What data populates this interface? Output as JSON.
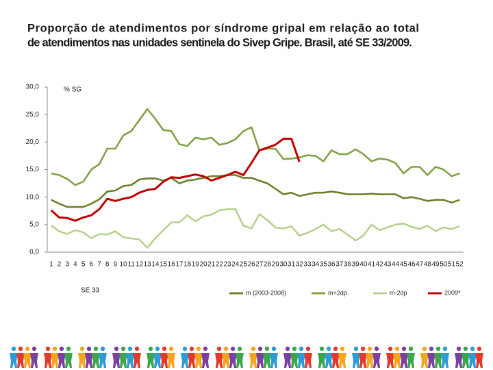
{
  "chart_data": {
    "type": "line",
    "title": [
      "Proporção de atendimentos por síndrome gripal em relação ao total",
      "de atendimentos nas unidades sentinela do Sivep Gripe. Brasil, até SE 33/2009."
    ],
    "y_label": "% SG",
    "annotation": "SE 33",
    "categories": [
      "1",
      "2",
      "3",
      "4",
      "5",
      "6",
      "7",
      "8",
      "9",
      "10",
      "11",
      "12",
      "13",
      "14",
      "15",
      "16",
      "17",
      "18",
      "19",
      "20",
      "21",
      "22",
      "23",
      "24",
      "25",
      "26",
      "27",
      "28",
      "29",
      "30",
      "31",
      "32",
      "33",
      "34",
      "35",
      "36",
      "37",
      "38",
      "39",
      "40",
      "41",
      "42",
      "43",
      "44",
      "45",
      "46",
      "47",
      "48",
      "49",
      "50",
      "51",
      "52"
    ],
    "ylim": [
      0,
      30
    ],
    "yticks": [
      {
        "value": 0,
        "label": "0,0"
      },
      {
        "value": 5,
        "label": "5,0"
      },
      {
        "value": 10,
        "label": "10,0"
      },
      {
        "value": 15,
        "label": "15,0"
      },
      {
        "value": 20,
        "label": "20,0"
      },
      {
        "value": 25,
        "label": "25,0"
      },
      {
        "value": 30,
        "label": "30,0"
      }
    ],
    "legend": "bottom",
    "series": [
      {
        "name": "m (2003-2008)",
        "color": "#6e7f2c",
        "values": [
          9.5,
          8.8,
          8.2,
          8.2,
          8.2,
          8.8,
          9.6,
          11.0,
          11.2,
          12.0,
          12.2,
          13.2,
          13.4,
          13.4,
          13.0,
          13.5,
          12.5,
          13.0,
          13.2,
          13.5,
          13.8,
          13.8,
          14.0,
          14.0,
          13.5,
          13.5,
          13.0,
          12.5,
          11.5,
          10.5,
          10.8,
          10.2,
          10.5,
          10.8,
          10.8,
          11.0,
          10.8,
          10.5,
          10.5,
          10.5,
          10.6,
          10.5,
          10.5,
          10.5,
          9.8,
          10.0,
          9.7,
          9.3,
          9.5,
          9.5,
          9.0,
          9.5
        ]
      },
      {
        "name": "m+2dp",
        "color": "#82a147",
        "values": [
          14.3,
          14.0,
          13.3,
          12.2,
          12.8,
          15.0,
          16.0,
          18.8,
          18.8,
          21.2,
          22.0,
          24.0,
          26.0,
          24.2,
          22.2,
          22.0,
          19.6,
          19.3,
          20.8,
          20.5,
          20.8,
          19.5,
          19.8,
          20.5,
          22.0,
          22.7,
          18.5,
          18.8,
          18.8,
          16.9,
          17.0,
          17.2,
          17.6,
          17.5,
          16.5,
          18.5,
          17.8,
          17.8,
          18.7,
          17.8,
          16.5,
          17.0,
          16.8,
          16.2,
          14.3,
          15.5,
          15.5,
          14.0,
          15.5,
          15.0,
          13.8,
          14.3
        ]
      },
      {
        "name": "m-2dp",
        "color": "#b8d08e",
        "values": [
          4.8,
          3.8,
          3.3,
          4.0,
          3.6,
          2.5,
          3.3,
          3.2,
          3.8,
          2.7,
          2.5,
          2.3,
          0.8,
          2.5,
          4.0,
          5.4,
          5.4,
          6.7,
          5.6,
          6.5,
          6.8,
          7.6,
          7.8,
          7.8,
          4.8,
          4.3,
          6.9,
          5.8,
          4.5,
          4.3,
          4.7,
          3.0,
          3.5,
          4.2,
          5.0,
          3.8,
          4.2,
          3.2,
          2.1,
          3.0,
          5.0,
          4.0,
          4.5,
          5.0,
          5.2,
          4.6,
          4.2,
          4.8,
          3.8,
          4.5,
          4.2,
          4.7
        ]
      },
      {
        "name": "2009*",
        "color": "#c00000",
        "values": [
          7.6,
          6.3,
          6.2,
          5.7,
          6.3,
          6.7,
          7.8,
          9.7,
          9.3,
          9.7,
          10.0,
          10.8,
          11.3,
          11.5,
          12.8,
          13.6,
          13.5,
          13.8,
          14.1,
          13.8,
          13.0,
          13.5,
          14.0,
          14.6,
          14.0,
          16.2,
          18.5,
          19.0,
          19.5,
          20.6,
          20.6,
          16.4,
          null,
          null,
          null,
          null,
          null,
          null,
          null,
          null,
          null,
          null,
          null,
          null,
          null,
          null,
          null,
          null,
          null,
          null,
          null,
          null
        ]
      }
    ]
  }
}
